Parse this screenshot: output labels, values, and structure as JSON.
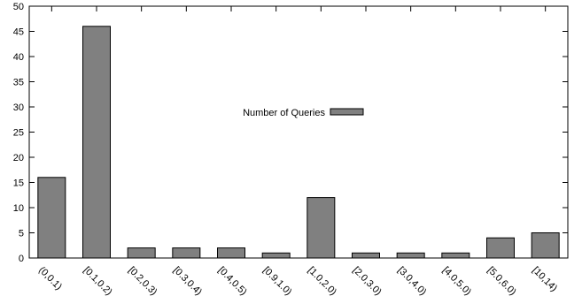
{
  "chart_data": {
    "type": "bar",
    "categories": [
      "(0,0.1)",
      "[0.1,0.2)",
      "[0.2,0.3)",
      "[0.3,0.4)",
      "[0.4,0.5)",
      "[0.9,1.0)",
      "[1.0,2.0)",
      "[2.0,3.0)",
      "[3.0,4.0)",
      "[4.0,5.0)",
      "[5.0,6.0)",
      "[10,14)"
    ],
    "series": [
      {
        "name": "Number of Queries",
        "values": [
          16,
          46,
          2,
          2,
          2,
          1,
          12,
          1,
          1,
          1,
          4,
          5
        ],
        "color": "#808080"
      }
    ],
    "ylim": [
      0,
      50
    ],
    "yticks": [
      0,
      5,
      10,
      15,
      20,
      25,
      30,
      35,
      40,
      45,
      50
    ],
    "xlabel": "",
    "ylabel": "",
    "title": "",
    "grid": false,
    "legend": {
      "position": "top-center"
    }
  }
}
